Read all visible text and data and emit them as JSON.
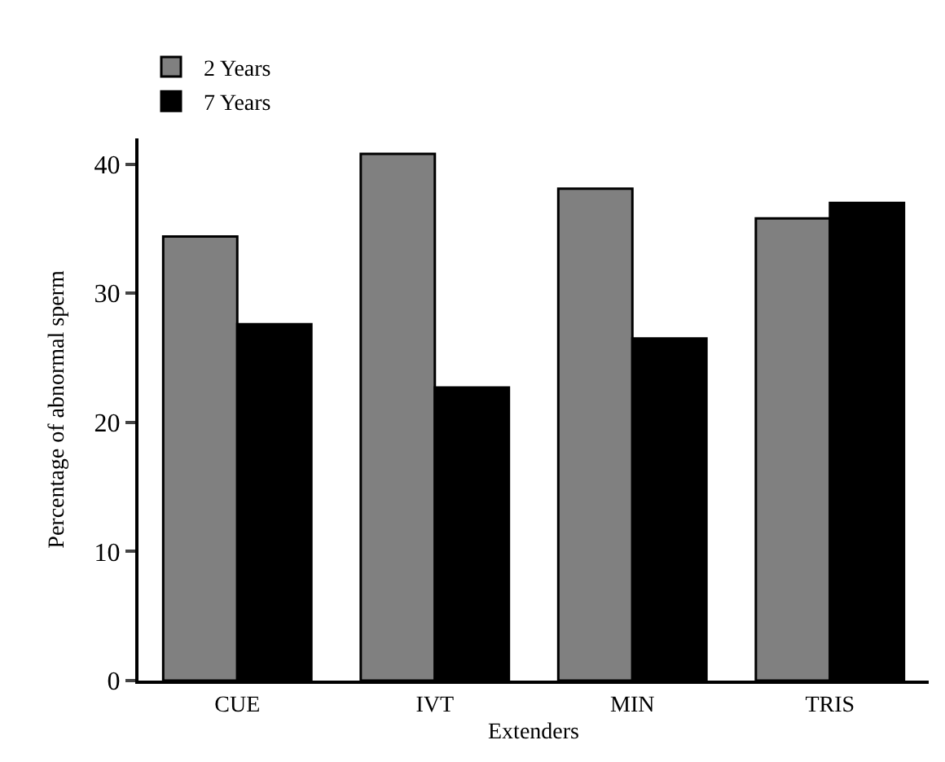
{
  "chart_data": {
    "type": "bar",
    "xlabel": "Extenders",
    "ylabel": "Percentage of abnormal sperm",
    "categories": [
      "CUE",
      "IVT",
      "MIN",
      "TRIS"
    ],
    "series": [
      {
        "name": "2 Years",
        "color": "#808080",
        "values": [
          34.4,
          40.8,
          38.1,
          35.8
        ]
      },
      {
        "name": "7 Years",
        "color": "#000000",
        "values": [
          27.6,
          22.7,
          26.5,
          37.0
        ]
      }
    ],
    "ylim": [
      0,
      42
    ],
    "yticks": [
      0,
      10,
      20,
      30,
      40
    ],
    "legend": "top left"
  }
}
